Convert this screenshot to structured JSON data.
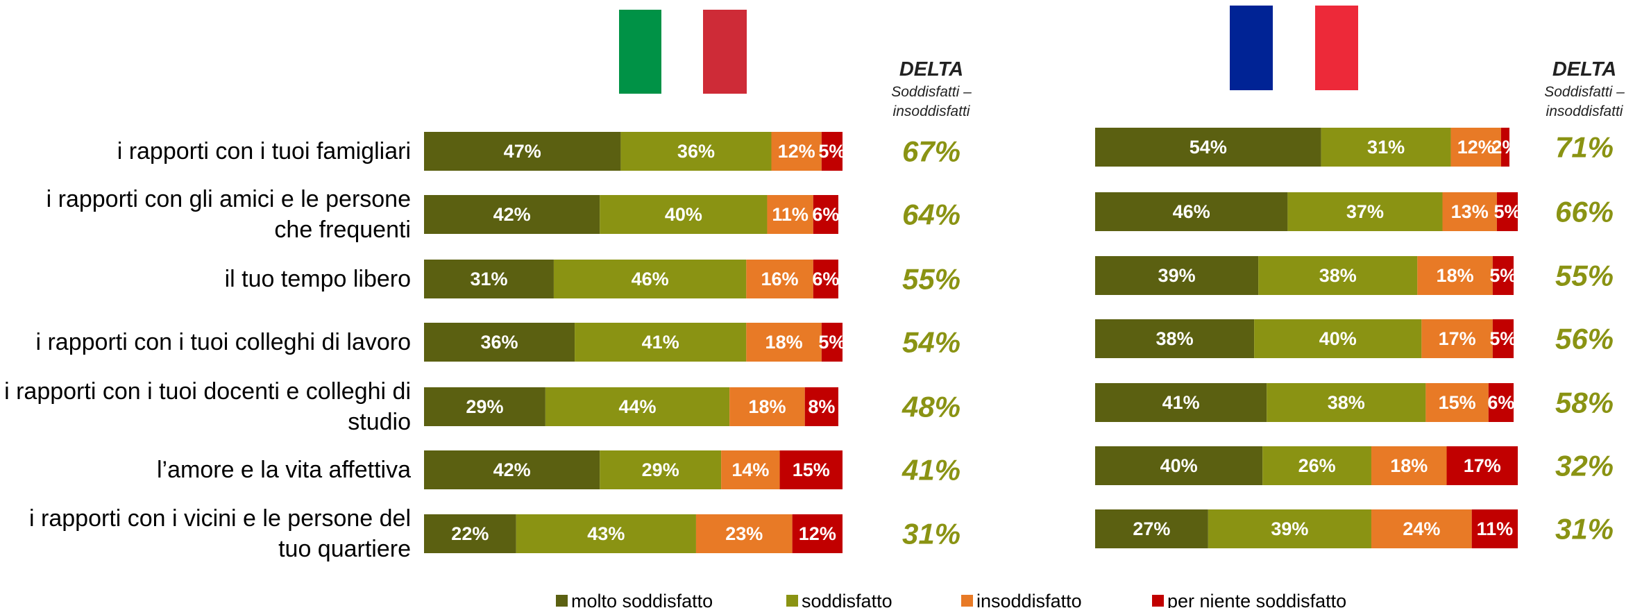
{
  "chart_data": [
    {
      "type": "bar",
      "orientation": "horizontal",
      "stacked": true,
      "xlim": [
        0,
        100
      ],
      "categories": [
        "i rapporti con i tuoi famigliari",
        "i rapporti con gli amici e le persone che frequenti",
        "il tuo tempo libero",
        "i rapporti con i tuoi colleghi di lavoro",
        "i rapporti con i tuoi docenti e colleghi di studio",
        "l’amore e la vita affettiva",
        "i rapporti con i vicini e le persone del tuo quartiere"
      ],
      "series": [
        {
          "name": "molto soddisfatto",
          "color": "#5b6011",
          "values": [
            47,
            42,
            31,
            36,
            29,
            42,
            22
          ],
          "value_labels": [
            "47%",
            "42%",
            "31%",
            "36%",
            "29%",
            "42%",
            "22%"
          ]
        },
        {
          "name": "soddisfatto",
          "color": "#8a9313",
          "values": [
            36,
            40,
            46,
            41,
            44,
            29,
            43
          ],
          "value_labels": [
            "36%",
            "40%",
            "46%",
            "41%",
            "44%",
            "29%",
            "43%"
          ]
        },
        {
          "name": "insoddisfatto",
          "color": "#e87a26",
          "values": [
            12,
            11,
            16,
            18,
            18,
            14,
            23
          ],
          "value_labels": [
            "12%",
            "11%",
            "16%",
            "18%",
            "18%",
            "14%",
            "23%"
          ]
        },
        {
          "name": "per niente soddisfatto",
          "color": "#c10000",
          "values": [
            5,
            6,
            6,
            5,
            8,
            15,
            12
          ],
          "value_labels": [
            "5%",
            "6%",
            "6%",
            "5%",
            "8%",
            "15%",
            "12%"
          ]
        }
      ],
      "delta": {
        "title": "DELTA",
        "subtitle": "Soddisfatti – insoddisfatti",
        "color": "#8a9313",
        "values": [
          67,
          64,
          55,
          54,
          48,
          41,
          31
        ],
        "value_labels": [
          "67%",
          "64%",
          "55%",
          "54%",
          "48%",
          "41%",
          "31%"
        ]
      }
    },
    {
      "type": "bar",
      "orientation": "horizontal",
      "stacked": true,
      "xlim": [
        0,
        100
      ],
      "series": [
        {
          "color": "#5b6011",
          "values": [
            54,
            46,
            39,
            38,
            41,
            40,
            27
          ],
          "value_labels": [
            "54%",
            "46%",
            "39%",
            "38%",
            "41%",
            "40%",
            "27%"
          ]
        },
        {
          "color": "#8a9313",
          "values": [
            31,
            37,
            38,
            40,
            38,
            26,
            39
          ],
          "value_labels": [
            "31%",
            "37%",
            "38%",
            "40%",
            "38%",
            "26%",
            "39%"
          ]
        },
        {
          "color": "#e87a26",
          "values": [
            12,
            13,
            18,
            17,
            15,
            18,
            24
          ],
          "value_labels": [
            "12%",
            "13%",
            "18%",
            "17%",
            "15%",
            "18%",
            "24%"
          ]
        },
        {
          "color": "#c10000",
          "values": [
            2,
            5,
            5,
            5,
            6,
            17,
            11
          ],
          "value_labels": [
            "2%",
            "5%",
            "5%",
            "5%",
            "6%",
            "17%",
            "11%"
          ]
        }
      ],
      "delta": {
        "title": "DELTA",
        "subtitle": "Soddisfatti – insoddisfatti",
        "color": "#8a9313",
        "values": [
          71,
          66,
          55,
          56,
          58,
          32,
          31
        ],
        "value_labels": [
          "71%",
          "66%",
          "55%",
          "56%",
          "58%",
          "32%",
          "31%"
        ]
      }
    }
  ]
}
